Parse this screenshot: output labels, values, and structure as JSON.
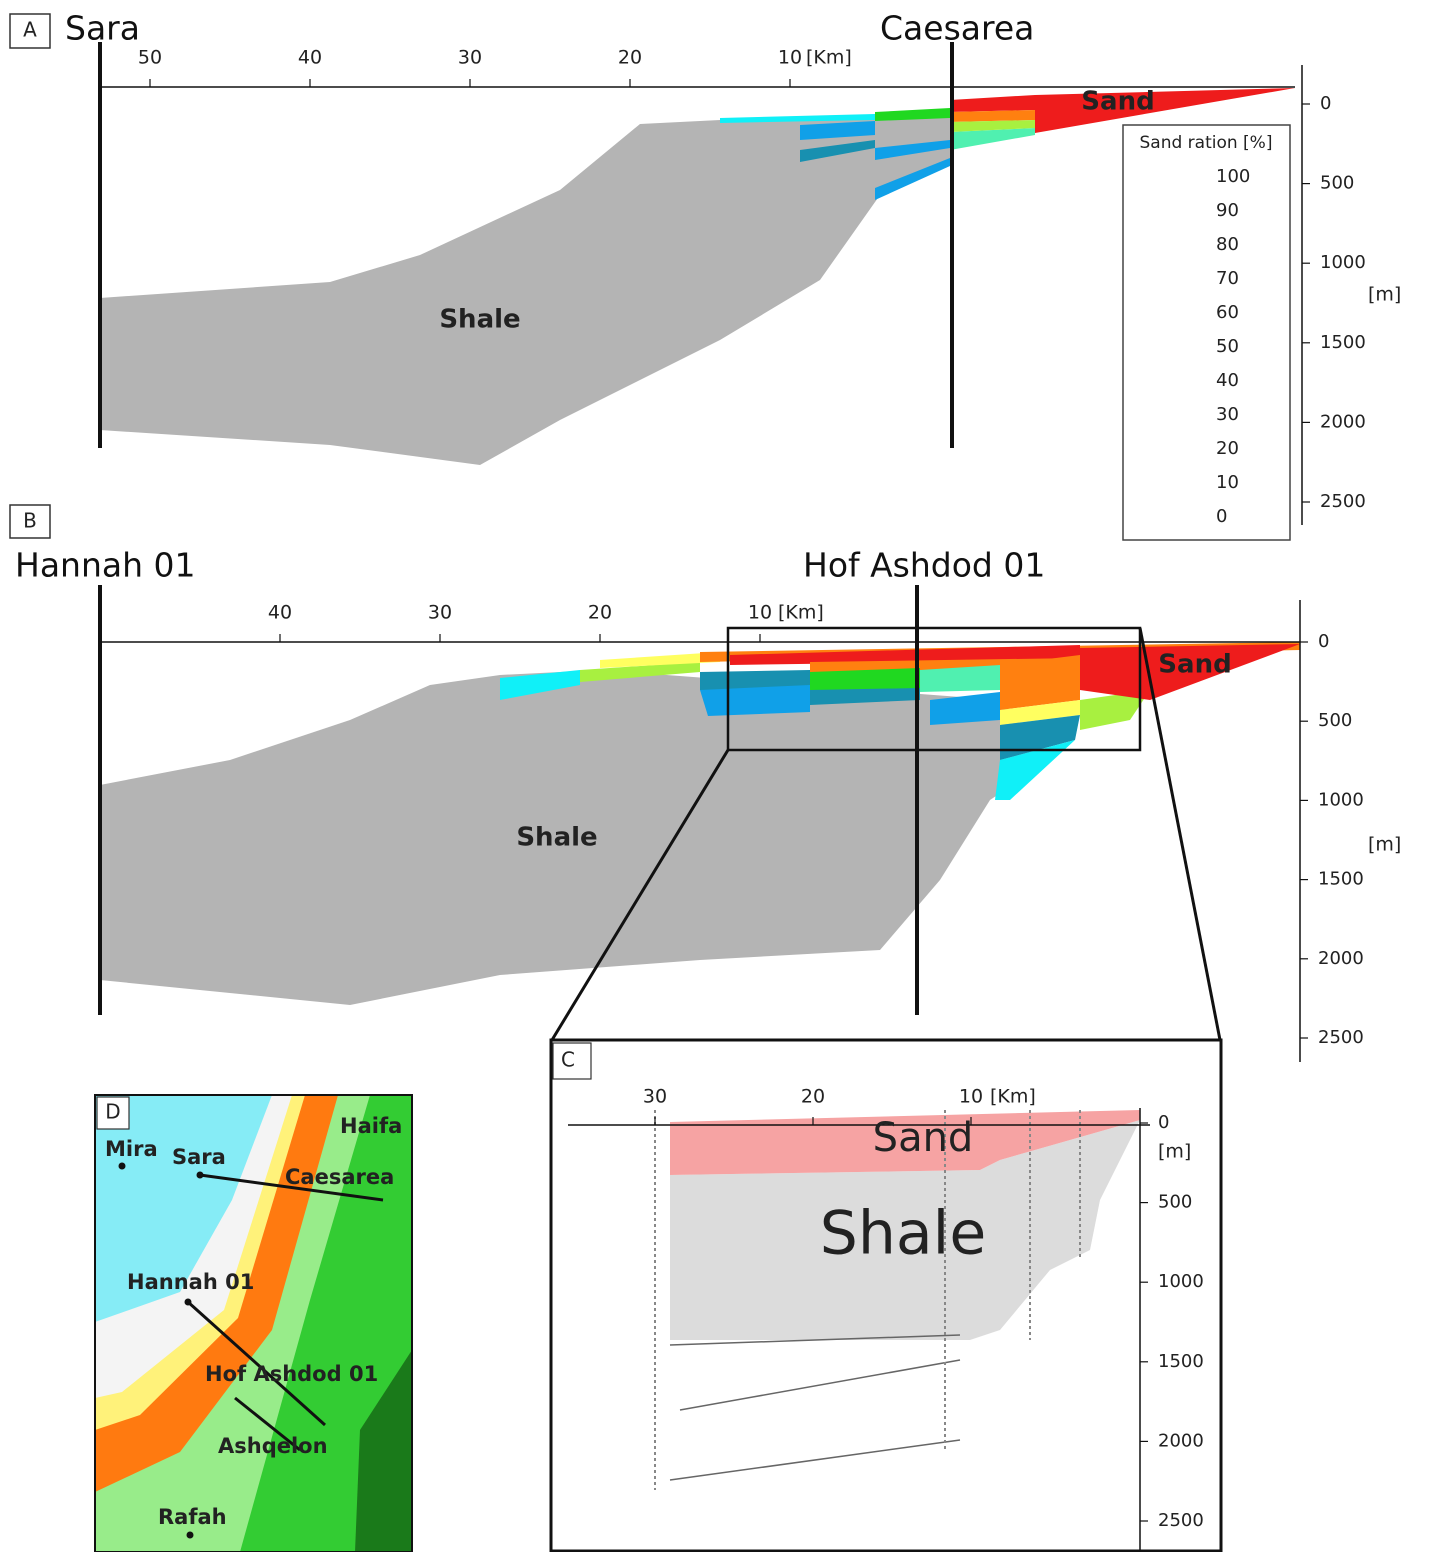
{
  "panel_a": {
    "label": "A",
    "left_well": "Sara",
    "right_well": "Caesarea",
    "distance_ticks": [
      "50",
      "40",
      "30",
      "20",
      "10"
    ],
    "distance_unit": "[Km]",
    "depth_ticks": [
      "0",
      "500",
      "1000",
      "1500",
      "2000",
      "2500"
    ],
    "depth_unit": "[m]",
    "shale_label": "Shale",
    "sand_label": "Sand"
  },
  "legend": {
    "title": "Sand ration [%]",
    "tick_labels": [
      "100",
      "90",
      "80",
      "70",
      "60",
      "50",
      "40",
      "30",
      "20",
      "10",
      "0"
    ],
    "colors": [
      "#ee1c1c",
      "#ff8010",
      "#ffff60",
      "#a8f040",
      "#20d820",
      "#50f0b0",
      "#10f0f8",
      "#10a0e8",
      "#1890b0",
      "#b4b4b4"
    ]
  },
  "panel_b": {
    "label": "B",
    "left_well": "Hannah 01",
    "right_well": "Hof Ashdod 01",
    "distance_ticks": [
      "40",
      "30",
      "20",
      "10"
    ],
    "distance_unit": "[Km]",
    "depth_ticks": [
      "0",
      "500",
      "1000",
      "1500",
      "2000",
      "2500"
    ],
    "depth_unit": "[m]",
    "shale_label": "Shale",
    "sand_label": "Sand"
  },
  "panel_c": {
    "label": "C",
    "distance_ticks": [
      "30",
      "20",
      "10"
    ],
    "distance_unit": "[Km]",
    "depth_ticks": [
      "0",
      "500",
      "1000",
      "1500",
      "2000",
      "2500"
    ],
    "depth_unit": "[m]",
    "sand_label": "Sand",
    "shale_label": "Shale"
  },
  "panel_d": {
    "label": "D",
    "places": [
      "Mira",
      "Sara",
      "Haifa",
      "Caesarea",
      "Hannah 01",
      "Hof Ashdod 01",
      "Ashqelon",
      "Rafah"
    ]
  }
}
